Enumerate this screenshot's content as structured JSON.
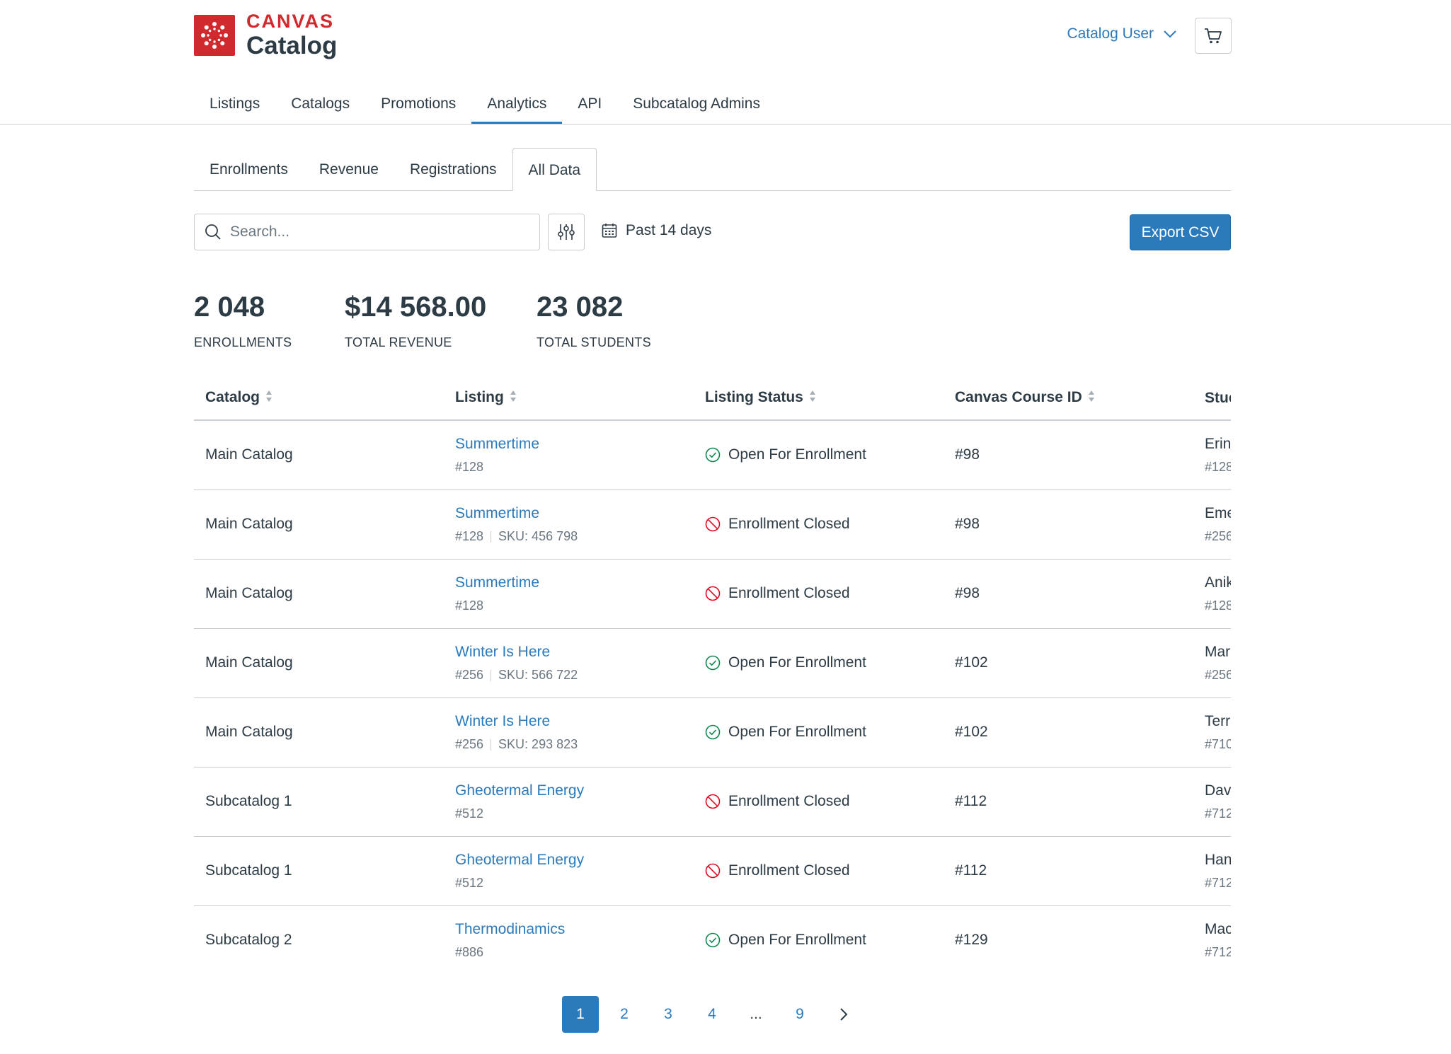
{
  "brand": {
    "word1": "CANVAS",
    "word2": "Catalog",
    "color": "#d12a2e"
  },
  "header": {
    "user_label": "Catalog User"
  },
  "main_nav": [
    "Listings",
    "Catalogs",
    "Promotions",
    "Analytics",
    "API",
    "Subcatalog Admins"
  ],
  "main_nav_active": "Analytics",
  "sub_tabs": [
    "Enrollments",
    "Revenue",
    "Registrations",
    "All Data"
  ],
  "sub_tab_active": "All Data",
  "toolbar": {
    "search_placeholder": "Search...",
    "date_range": "Past 14 days",
    "export_label": "Export CSV"
  },
  "stats": [
    {
      "value": "2 048",
      "label": "ENROLLMENTS"
    },
    {
      "value": "$14 568.00",
      "label": "TOTAL REVENUE"
    },
    {
      "value": "23 082",
      "label": "TOTAL STUDENTS"
    }
  ],
  "table": {
    "headers": [
      "Catalog",
      "Listing",
      "Listing Status",
      "Canvas Course ID",
      "Stuc"
    ],
    "rows": [
      {
        "catalog": "Main Catalog",
        "listing": "Summertime",
        "listing_id": "#128",
        "sku": "",
        "status": "Open For Enrollment",
        "status_type": "open",
        "course_id": "#98",
        "student": "Erin",
        "student_id": "#128"
      },
      {
        "catalog": "Main Catalog",
        "listing": "Summertime",
        "listing_id": "#128",
        "sku": "SKU: 456 798",
        "status": "Enrollment Closed",
        "status_type": "closed",
        "course_id": "#98",
        "student": "Eme",
        "student_id": "#256"
      },
      {
        "catalog": "Main Catalog",
        "listing": "Summertime",
        "listing_id": "#128",
        "sku": "",
        "status": "Enrollment Closed",
        "status_type": "closed",
        "course_id": "#98",
        "student": "Anik",
        "student_id": "#128"
      },
      {
        "catalog": "Main Catalog",
        "listing": "Winter Is Here",
        "listing_id": "#256",
        "sku": "SKU: 566 722",
        "status": "Open For Enrollment",
        "status_type": "open",
        "course_id": "#102",
        "student": "Mar",
        "student_id": "#256"
      },
      {
        "catalog": "Main Catalog",
        "listing": "Winter Is Here",
        "listing_id": "#256",
        "sku": "SKU: 293 823",
        "status": "Open For Enrollment",
        "status_type": "open",
        "course_id": "#102",
        "student": "Terr",
        "student_id": "#710"
      },
      {
        "catalog": "Subcatalog 1",
        "listing": "Gheotermal Energy",
        "listing_id": "#512",
        "sku": "",
        "status": "Enrollment Closed",
        "status_type": "closed",
        "course_id": "#112",
        "student": "Dav",
        "student_id": "#712"
      },
      {
        "catalog": "Subcatalog 1",
        "listing": "Gheotermal Energy",
        "listing_id": "#512",
        "sku": "",
        "status": "Enrollment Closed",
        "status_type": "closed",
        "course_id": "#112",
        "student": "Han",
        "student_id": "#712"
      },
      {
        "catalog": "Subcatalog 2",
        "listing": "Thermodinamics",
        "listing_id": "#886",
        "sku": "",
        "status": "Open For Enrollment",
        "status_type": "open",
        "course_id": "#129",
        "student": "Mac",
        "student_id": "#712"
      }
    ]
  },
  "pagination": {
    "pages": [
      "1",
      "2",
      "3",
      "4",
      "...",
      "9"
    ],
    "current": "1"
  },
  "colors": {
    "accent": "#2b7abc",
    "text": "#2d3b45",
    "muted": "#6b7780",
    "success": "#0b874b",
    "danger": "#e0061f",
    "border": "#c7cdd1"
  }
}
